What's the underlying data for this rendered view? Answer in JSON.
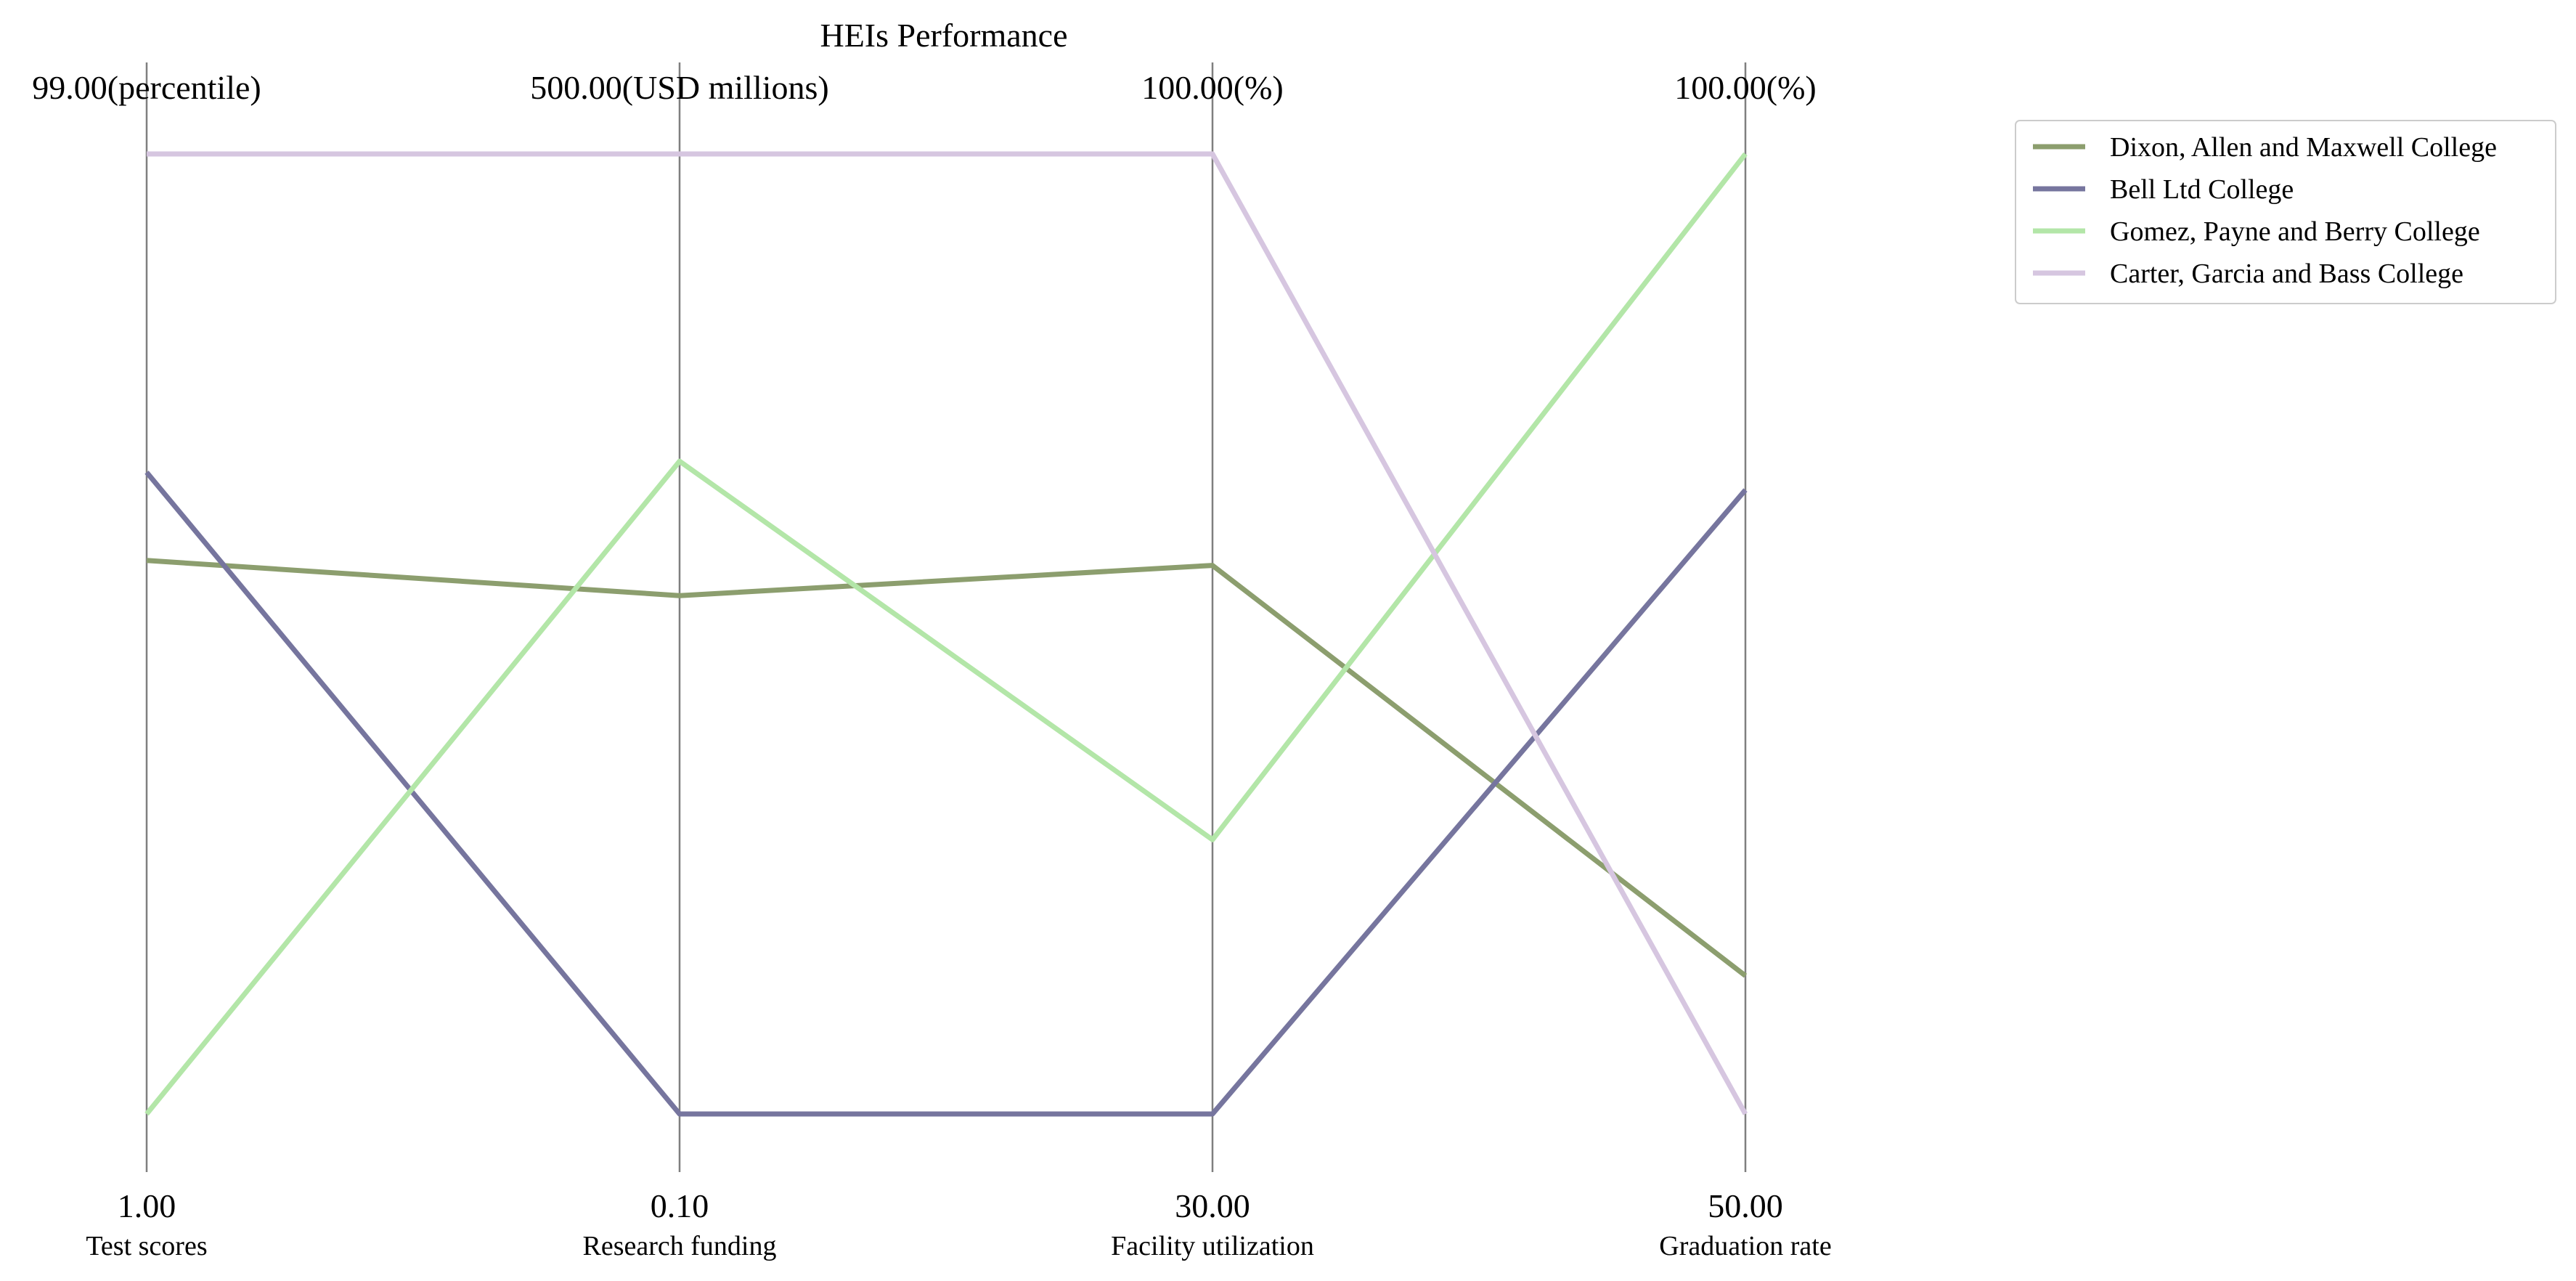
{
  "chart_data": {
    "type": "parallel-coordinates",
    "title": "HEIs Performance",
    "axes": [
      {
        "name": "Test scores",
        "min": 1,
        "max": 99,
        "min_label": "1.00",
        "max_label": "99.00(percentile)"
      },
      {
        "name": "Research funding",
        "min": 0.1,
        "max": 500,
        "min_label": "0.10",
        "max_label": "500.00(USD millions)"
      },
      {
        "name": "Facility utilization",
        "min": 30,
        "max": 100,
        "min_label": "30.00",
        "max_label": "100.00(%)"
      },
      {
        "name": "Graduation rate",
        "min": 50,
        "max": 100,
        "min_label": "50.00",
        "max_label": "100.00(%)"
      }
    ],
    "series": [
      {
        "name": "Dixon, Allen and Maxwell  College",
        "color": "#8c9e6e",
        "values": [
          57.5,
          270,
          70,
          57.2
        ]
      },
      {
        "name": "Bell Ltd  College",
        "color": "#76759e",
        "values": [
          66.5,
          0.1,
          30,
          82.5
        ]
      },
      {
        "name": "Gomez, Payne and Berry  College",
        "color": "#b3e6a8",
        "values": [
          1,
          340,
          50,
          100
        ]
      },
      {
        "name": "Carter, Garcia and Bass  College",
        "color": "#d6c6e0",
        "values": [
          99,
          500,
          100,
          50
        ]
      }
    ],
    "legend_position": "top-right",
    "grid": false
  }
}
